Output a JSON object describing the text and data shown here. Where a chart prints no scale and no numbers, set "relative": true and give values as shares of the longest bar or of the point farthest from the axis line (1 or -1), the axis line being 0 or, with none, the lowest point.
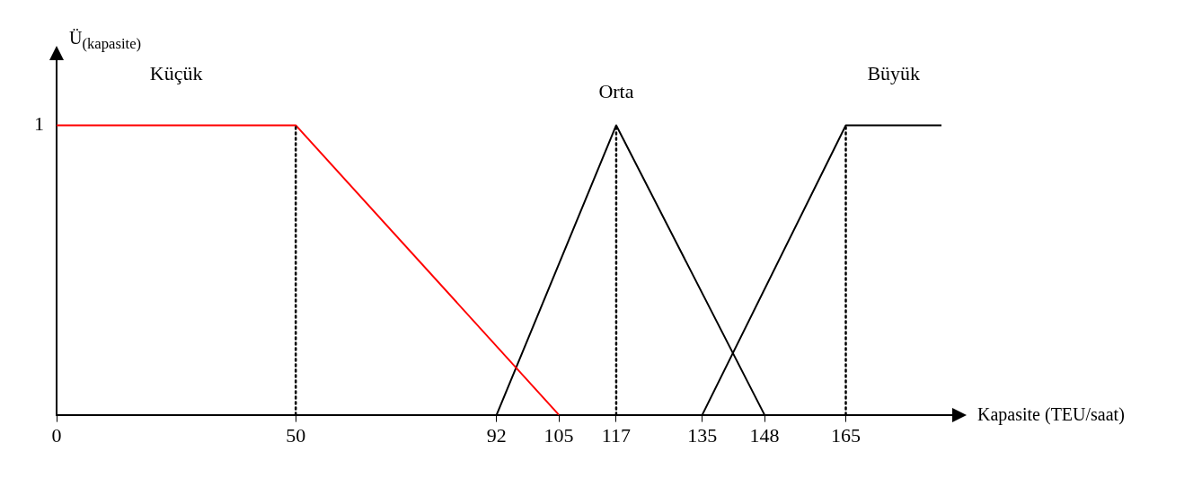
{
  "chart_data": {
    "type": "line",
    "xlabel": "Kapasite (TEU/saat)",
    "ylabel": "Ü$_{(kapasite)}$",
    "xlim": [
      0,
      185
    ],
    "xticks": [
      0,
      50,
      92,
      105,
      117,
      135,
      148,
      165
    ],
    "relative": true,
    "annotations": [
      "1"
    ],
    "grid": false,
    "legend": false,
    "marker": "none",
    "line_style": "solid",
    "series": [
      {
        "name": "Küçük",
        "color": "#ff0000",
        "x": [
          0,
          50,
          105
        ],
        "values": [
          1,
          1,
          0
        ]
      },
      {
        "name": "Orta",
        "color": "#000000",
        "x": [
          92,
          117,
          148
        ],
        "values": [
          0,
          1,
          0
        ]
      },
      {
        "name": "Büyük",
        "color": "#000000",
        "x": [
          135,
          165,
          185
        ],
        "values": [
          0,
          1,
          1
        ]
      }
    ],
    "ref_lines": [
      {
        "axis": "x",
        "value": 50,
        "color": "#000000",
        "line_style": "dotted"
      },
      {
        "axis": "x",
        "value": 117,
        "color": "#000000",
        "line_style": "dotted"
      },
      {
        "axis": "x",
        "value": 165,
        "color": "#000000",
        "line_style": "dotted"
      }
    ]
  }
}
